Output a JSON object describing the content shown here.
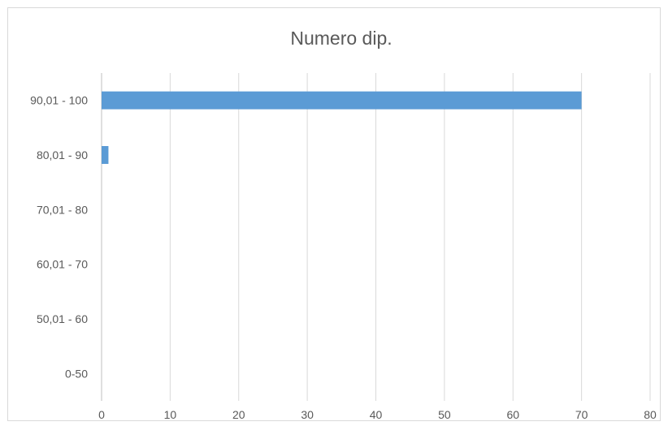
{
  "chart_data": {
    "type": "bar",
    "orientation": "horizontal",
    "title": "Numero dip.",
    "xlabel": "",
    "ylabel": "",
    "categories": [
      "0-50",
      "50,01 - 60",
      "60,01 - 70",
      "70,01 - 80",
      "80,01 - 90",
      "90,01 - 100"
    ],
    "values": [
      0,
      0,
      0,
      0,
      1,
      70
    ],
    "xlim": [
      0,
      80
    ],
    "xticks": [
      "0",
      "10",
      "20",
      "30",
      "40",
      "50",
      "60",
      "70",
      "80"
    ],
    "grid": true,
    "legend": "none",
    "colors": {
      "bar": "#5b9bd5",
      "grid": "#d9d9d9",
      "text": "#595959",
      "border": "#d9d9d9"
    }
  }
}
